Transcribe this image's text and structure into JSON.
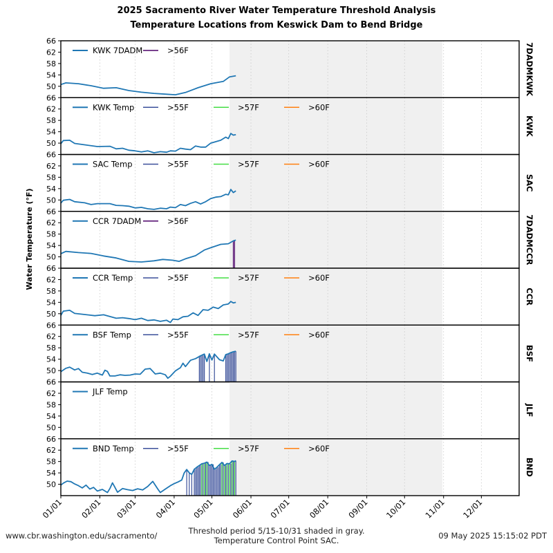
{
  "title_line1": "2025 Sacramento River Water Temperature Threshold Analysis",
  "title_line2": "Temperature Locations from Keswick Dam to Bend Bridge",
  "footer": {
    "url": "www.cbr.washington.edu/sacramento/",
    "note_line1": "Threshold period 5/15-10/31 shaded in gray.",
    "note_line2": "Temperature Control Point SAC.",
    "timestamp": "09 May 2025 15:15:02 PDT"
  },
  "colors": {
    "series": "#1f77b4",
    "gt55": "#3a4f9a",
    "gt56": "#4b0068",
    "gt57": "#44dd44",
    "gt60": "#ff7f0e",
    "shade": "#f0f0f0"
  },
  "chart_data": {
    "type": "line",
    "ylabel": "Water Temperature (°F)",
    "x_ticks": [
      "01/01",
      "02/01",
      "03/01",
      "04/01",
      "05/01",
      "06/01",
      "07/01",
      "08/01",
      "09/01",
      "10/01",
      "11/01",
      "12/01"
    ],
    "x_range_days": [
      1,
      365
    ],
    "y_ticks": [
      "66",
      "62",
      "58",
      "54",
      "50"
    ],
    "ylim": [
      46,
      66
    ],
    "threshold_period": [
      "05/15",
      "10/31"
    ],
    "grid": "vertical dotted at month ticks",
    "panels": [
      {
        "id": "7DADMKWK",
        "series_label": "KWK 7DADM",
        "thresholds": [
          ">56F"
        ],
        "points": [
          [
            1,
            50.6
          ],
          [
            5,
            51.2
          ],
          [
            15,
            50.9
          ],
          [
            25,
            50.2
          ],
          [
            35,
            49.3
          ],
          [
            45,
            49.5
          ],
          [
            55,
            48.5
          ],
          [
            65,
            47.9
          ],
          [
            75,
            47.5
          ],
          [
            85,
            47.2
          ],
          [
            92,
            47.0
          ],
          [
            100,
            47.8
          ],
          [
            110,
            49.5
          ],
          [
            120,
            50.9
          ],
          [
            130,
            51.7
          ],
          [
            135,
            53.3
          ],
          [
            140,
            53.7
          ]
        ],
        "exceed": []
      },
      {
        "id": "KWK",
        "series_label": "KWK Temp",
        "thresholds": [
          ">55F",
          ">57F",
          ">60F"
        ],
        "points": [
          [
            1,
            49.8
          ],
          [
            3,
            50.9
          ],
          [
            8,
            51.0
          ],
          [
            12,
            49.9
          ],
          [
            20,
            49.4
          ],
          [
            30,
            48.8
          ],
          [
            40,
            48.9
          ],
          [
            45,
            48.0
          ],
          [
            50,
            48.2
          ],
          [
            55,
            47.5
          ],
          [
            60,
            47.3
          ],
          [
            65,
            46.9
          ],
          [
            70,
            47.3
          ],
          [
            75,
            46.6
          ],
          [
            80,
            47.0
          ],
          [
            85,
            46.8
          ],
          [
            88,
            47.3
          ],
          [
            92,
            47.2
          ],
          [
            96,
            48.2
          ],
          [
            100,
            47.9
          ],
          [
            104,
            47.7
          ],
          [
            108,
            49.0
          ],
          [
            112,
            48.6
          ],
          [
            116,
            48.6
          ],
          [
            120,
            50.0
          ],
          [
            124,
            50.5
          ],
          [
            128,
            51.0
          ],
          [
            132,
            52.1
          ],
          [
            134,
            51.6
          ],
          [
            136,
            53.4
          ],
          [
            138,
            52.8
          ],
          [
            140,
            53.0
          ]
        ],
        "exceed": []
      },
      {
        "id": "SAC",
        "series_label": "SAC Temp",
        "thresholds": [
          ">55F",
          ">57F",
          ">60F"
        ],
        "points": [
          [
            1,
            48.9
          ],
          [
            3,
            49.9
          ],
          [
            8,
            50.2
          ],
          [
            12,
            49.4
          ],
          [
            20,
            49.0
          ],
          [
            25,
            48.4
          ],
          [
            30,
            48.7
          ],
          [
            40,
            48.7
          ],
          [
            45,
            48.1
          ],
          [
            50,
            48.0
          ],
          [
            55,
            47.8
          ],
          [
            60,
            47.2
          ],
          [
            65,
            47.4
          ],
          [
            70,
            46.9
          ],
          [
            75,
            46.7
          ],
          [
            80,
            47.1
          ],
          [
            85,
            46.9
          ],
          [
            88,
            47.5
          ],
          [
            92,
            47.3
          ],
          [
            96,
            48.4
          ],
          [
            100,
            48.0
          ],
          [
            104,
            48.8
          ],
          [
            108,
            49.4
          ],
          [
            112,
            48.6
          ],
          [
            116,
            49.4
          ],
          [
            120,
            50.5
          ],
          [
            124,
            51.0
          ],
          [
            128,
            51.2
          ],
          [
            132,
            52.0
          ],
          [
            134,
            51.8
          ],
          [
            136,
            53.7
          ],
          [
            138,
            52.6
          ],
          [
            140,
            53.2
          ]
        ],
        "exceed": []
      },
      {
        "id": "7DADMCCR",
        "series_label": "CCR 7DADM",
        "thresholds": [
          ">56F"
        ],
        "points": [
          [
            1,
            51.1
          ],
          [
            5,
            51.9
          ],
          [
            15,
            51.5
          ],
          [
            25,
            51.2
          ],
          [
            35,
            50.3
          ],
          [
            45,
            49.6
          ],
          [
            55,
            48.4
          ],
          [
            65,
            48.2
          ],
          [
            75,
            48.6
          ],
          [
            82,
            49.1
          ],
          [
            90,
            48.8
          ],
          [
            95,
            48.4
          ],
          [
            100,
            49.3
          ],
          [
            108,
            50.4
          ],
          [
            115,
            52.4
          ],
          [
            120,
            53.2
          ],
          [
            128,
            54.4
          ],
          [
            134,
            54.6
          ],
          [
            138,
            55.6
          ],
          [
            140,
            55.9
          ]
        ],
        "exceed": [
          {
            "threshold": ">56F",
            "days": [
              138,
              139
            ]
          }
        ]
      },
      {
        "id": "CCR",
        "series_label": "CCR Temp",
        "thresholds": [
          ">55F",
          ">57F",
          ">60F"
        ],
        "points": [
          [
            1,
            49.4
          ],
          [
            3,
            50.9
          ],
          [
            8,
            51.2
          ],
          [
            12,
            50.1
          ],
          [
            20,
            49.7
          ],
          [
            28,
            49.3
          ],
          [
            35,
            49.6
          ],
          [
            40,
            49.0
          ],
          [
            45,
            48.4
          ],
          [
            50,
            48.6
          ],
          [
            55,
            48.3
          ],
          [
            60,
            47.9
          ],
          [
            65,
            48.4
          ],
          [
            70,
            47.6
          ],
          [
            75,
            47.8
          ],
          [
            80,
            47.3
          ],
          [
            85,
            47.7
          ],
          [
            88,
            46.9
          ],
          [
            90,
            48.1
          ],
          [
            94,
            47.9
          ],
          [
            98,
            48.9
          ],
          [
            102,
            49.1
          ],
          [
            106,
            50.3
          ],
          [
            110,
            49.4
          ],
          [
            114,
            51.4
          ],
          [
            118,
            51.2
          ],
          [
            122,
            52.3
          ],
          [
            126,
            51.8
          ],
          [
            130,
            53.1
          ],
          [
            134,
            53.4
          ],
          [
            136,
            54.3
          ],
          [
            138,
            53.8
          ],
          [
            140,
            54.0
          ]
        ],
        "exceed": []
      },
      {
        "id": "BSF",
        "series_label": "BSF Temp",
        "thresholds": [
          ">55F",
          ">57F",
          ">60F"
        ],
        "points": [
          [
            1,
            49.6
          ],
          [
            5,
            50.8
          ],
          [
            8,
            51.2
          ],
          [
            12,
            50.2
          ],
          [
            15,
            50.7
          ],
          [
            18,
            49.4
          ],
          [
            22,
            49.1
          ],
          [
            26,
            48.6
          ],
          [
            30,
            49.1
          ],
          [
            34,
            48.4
          ],
          [
            36,
            50.1
          ],
          [
            38,
            49.7
          ],
          [
            40,
            48.1
          ],
          [
            44,
            48.1
          ],
          [
            48,
            48.5
          ],
          [
            52,
            48.3
          ],
          [
            56,
            48.4
          ],
          [
            60,
            48.8
          ],
          [
            64,
            48.7
          ],
          [
            68,
            50.5
          ],
          [
            72,
            50.7
          ],
          [
            76,
            48.8
          ],
          [
            80,
            49.1
          ],
          [
            84,
            48.5
          ],
          [
            86,
            47.3
          ],
          [
            88,
            48.0
          ],
          [
            92,
            49.9
          ],
          [
            96,
            51.0
          ],
          [
            98,
            52.6
          ],
          [
            100,
            51.4
          ],
          [
            104,
            53.6
          ],
          [
            108,
            54.2
          ],
          [
            112,
            55.2
          ],
          [
            115,
            55.8
          ],
          [
            117,
            53.2
          ],
          [
            119,
            55.9
          ],
          [
            121,
            53.7
          ],
          [
            123,
            55.8
          ],
          [
            127,
            53.8
          ],
          [
            130,
            53.4
          ],
          [
            132,
            55.6
          ],
          [
            134,
            55.9
          ],
          [
            136,
            56.3
          ],
          [
            138,
            56.6
          ],
          [
            140,
            56.8
          ]
        ],
        "exceed": [
          {
            "threshold": ">55F",
            "days": [
              111,
              112,
              113,
              114,
              115,
              119,
              123,
              132,
              133,
              134,
              135,
              136,
              137,
              138,
              139,
              140
            ]
          }
        ]
      },
      {
        "id": "JLF",
        "series_label": "JLF Temp",
        "thresholds": [],
        "points": [],
        "exceed": []
      },
      {
        "id": "BND",
        "series_label": "BND Temp",
        "thresholds": [
          ">55F",
          ">57F",
          ">60F"
        ],
        "points": [
          [
            1,
            49.7
          ],
          [
            3,
            50.4
          ],
          [
            6,
            51.1
          ],
          [
            9,
            50.9
          ],
          [
            12,
            50.1
          ],
          [
            15,
            49.5
          ],
          [
            18,
            48.7
          ],
          [
            21,
            49.7
          ],
          [
            24,
            48.3
          ],
          [
            27,
            48.9
          ],
          [
            30,
            47.6
          ],
          [
            34,
            48.2
          ],
          [
            38,
            47.1
          ],
          [
            40,
            48.5
          ],
          [
            42,
            50.5
          ],
          [
            44,
            48.9
          ],
          [
            46,
            47.2
          ],
          [
            50,
            48.5
          ],
          [
            54,
            48.1
          ],
          [
            58,
            47.8
          ],
          [
            62,
            48.4
          ],
          [
            66,
            48.0
          ],
          [
            70,
            49.2
          ],
          [
            74,
            51.0
          ],
          [
            78,
            48.3
          ],
          [
            80,
            47.1
          ],
          [
            84,
            48.3
          ],
          [
            88,
            49.5
          ],
          [
            91,
            50.2
          ],
          [
            94,
            50.8
          ],
          [
            97,
            51.5
          ],
          [
            99,
            54.0
          ],
          [
            101,
            55.2
          ],
          [
            103,
            54.0
          ],
          [
            105,
            53.5
          ],
          [
            107,
            55.3
          ],
          [
            109,
            56.0
          ],
          [
            111,
            56.6
          ],
          [
            113,
            57.2
          ],
          [
            115,
            57.4
          ],
          [
            117,
            57.8
          ],
          [
            119,
            56.6
          ],
          [
            121,
            57.0
          ],
          [
            123,
            55.3
          ],
          [
            125,
            56.0
          ],
          [
            127,
            56.9
          ],
          [
            129,
            57.7
          ],
          [
            131,
            56.6
          ],
          [
            133,
            57.3
          ],
          [
            135,
            57.2
          ],
          [
            137,
            58.2
          ],
          [
            139,
            58.0
          ],
          [
            140,
            58.3
          ]
        ],
        "exceed": [
          {
            "threshold": ">55F",
            "days": [
              101,
              103,
              105,
              107,
              108,
              109,
              110,
              111,
              112,
              113,
              114,
              115,
              116,
              117,
              118,
              119,
              120,
              121,
              122,
              123,
              124,
              125,
              126,
              127,
              128,
              129,
              130,
              131,
              132,
              133,
              134,
              135,
              136,
              137,
              138,
              139,
              140
            ]
          },
          {
            "threshold": ">57F",
            "days": [
              113,
              115,
              117,
              129,
              131,
              133,
              135,
              137,
              139
            ]
          }
        ]
      }
    ]
  }
}
